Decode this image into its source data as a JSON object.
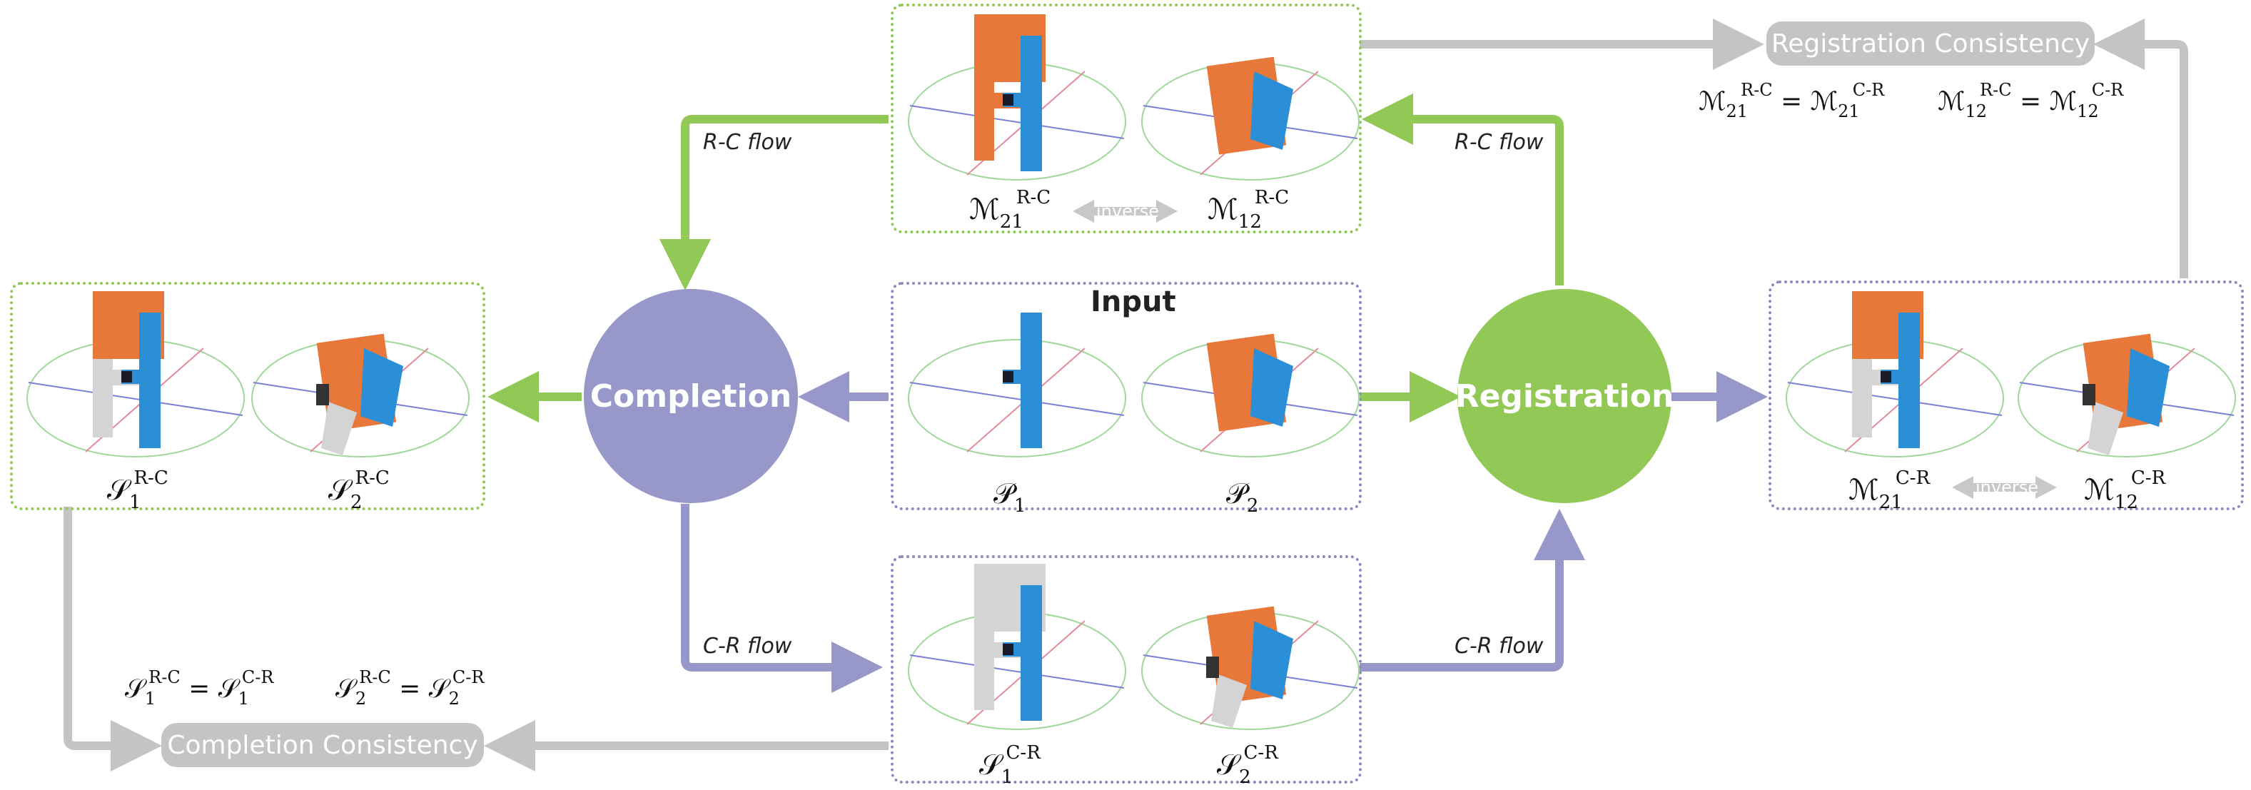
{
  "nodes": {
    "completion": "Completion",
    "registration": "Registration",
    "completion_consistency": "Completion Consistency",
    "registration_consistency": "Registration Consistency"
  },
  "flows": {
    "rc_left": "R-C flow",
    "rc_right": "R-C flow",
    "cr_left": "C-R flow",
    "cr_right": "C-R flow"
  },
  "input_title": "Input",
  "inverse_label": "inverse",
  "symbols": {
    "input": [
      {
        "base": "𝒫",
        "sub": "1",
        "sup": ""
      },
      {
        "base": "𝒫",
        "sub": "2",
        "sup": ""
      }
    ],
    "rc_registration": [
      {
        "base": "ℳ",
        "sub": "21",
        "sup": "R-C"
      },
      {
        "base": "ℳ",
        "sub": "12",
        "sup": "R-C"
      }
    ],
    "rc_completion": [
      {
        "base": "𝒮",
        "sub": "1",
        "sup": "R-C"
      },
      {
        "base": "𝒮",
        "sub": "2",
        "sup": "R-C"
      }
    ],
    "cr_completion": [
      {
        "base": "𝒮",
        "sub": "1",
        "sup": "C-R"
      },
      {
        "base": "𝒮",
        "sub": "2",
        "sup": "C-R"
      }
    ],
    "cr_registration": [
      {
        "base": "ℳ",
        "sub": "21",
        "sup": "C-R"
      },
      {
        "base": "ℳ",
        "sub": "12",
        "sup": "C-R"
      }
    ]
  },
  "equations": {
    "completion": [
      {
        "lhs": {
          "base": "𝒮",
          "sub": "1",
          "sup": "R-C"
        },
        "rhs": {
          "base": "𝒮",
          "sub": "1",
          "sup": "C-R"
        }
      },
      {
        "lhs": {
          "base": "𝒮",
          "sub": "2",
          "sup": "R-C"
        },
        "rhs": {
          "base": "𝒮",
          "sub": "2",
          "sup": "C-R"
        }
      }
    ],
    "registration": [
      {
        "lhs": {
          "base": "ℳ",
          "sub": "21",
          "sup": "R-C"
        },
        "rhs": {
          "base": "ℳ",
          "sub": "21",
          "sup": "C-R"
        }
      },
      {
        "lhs": {
          "base": "ℳ",
          "sub": "12",
          "sup": "R-C"
        },
        "rhs": {
          "base": "ℳ",
          "sub": "12",
          "sup": "C-R"
        }
      }
    ]
  },
  "colors": {
    "green": "#92c855",
    "purple": "#9897c9",
    "gray": "#c4c4c4",
    "orange": "#e8773a",
    "blue": "#2a8fd6",
    "light_gray": "#d4d4d4",
    "dark_gray": "#333333"
  }
}
